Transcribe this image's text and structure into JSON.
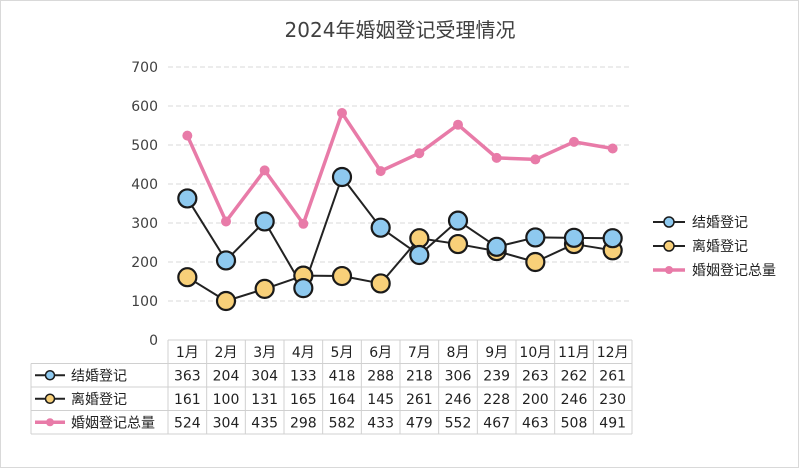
{
  "chart_data": {
    "type": "line",
    "title": "2024年婚姻登记受理情况",
    "categories": [
      "1月",
      "2月",
      "3月",
      "4月",
      "5月",
      "6月",
      "7月",
      "8月",
      "9月",
      "10月",
      "11月",
      "12月"
    ],
    "ylim": [
      0,
      700
    ],
    "yticks": [
      0,
      100,
      200,
      300,
      400,
      500,
      600,
      700
    ],
    "grid": true,
    "legend_position": "right",
    "data_table": true,
    "series": [
      {
        "name": "结婚登记",
        "values": [
          363,
          204,
          304,
          133,
          418,
          288,
          218,
          306,
          239,
          263,
          262,
          261
        ],
        "line_color": "#222222",
        "marker_fill": "#8ec9ef",
        "marker": "circle-large"
      },
      {
        "name": "离婚登记",
        "values": [
          161,
          100,
          131,
          165,
          164,
          145,
          261,
          246,
          228,
          200,
          246,
          230
        ],
        "line_color": "#222222",
        "marker_fill": "#f8d079",
        "marker": "circle-large"
      },
      {
        "name": "婚姻登记总量",
        "values": [
          524,
          304,
          435,
          298,
          582,
          433,
          479,
          552,
          467,
          463,
          508,
          491
        ],
        "line_color": "#e87ba8",
        "marker_fill": "#e87ba8",
        "marker": "circle-small"
      }
    ]
  }
}
